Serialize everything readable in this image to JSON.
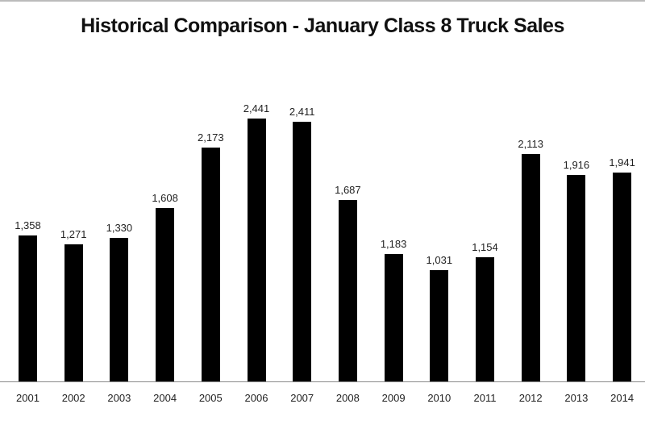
{
  "chart_data": {
    "type": "bar",
    "title": "Historical Comparison - January Class 8 Truck Sales",
    "xlabel": "",
    "ylabel": "",
    "categories": [
      "2001",
      "2002",
      "2003",
      "2004",
      "2005",
      "2006",
      "2007",
      "2008",
      "2009",
      "2010",
      "2011",
      "2012",
      "2013",
      "2014"
    ],
    "values": [
      1358,
      1271,
      1330,
      1608,
      2173,
      2441,
      2411,
      1687,
      1183,
      1031,
      1154,
      2113,
      1916,
      1941
    ],
    "value_labels": [
      "1,358",
      "1,271",
      "1,330",
      "1,608",
      "2,173",
      "2,441",
      "2,411",
      "1,687",
      "1,183",
      "1,031",
      "1,154",
      "2,113",
      "1,916",
      "1,941"
    ],
    "ylim": [
      0,
      2441
    ],
    "grid": false,
    "legend": null,
    "bar_color": "#000000"
  }
}
